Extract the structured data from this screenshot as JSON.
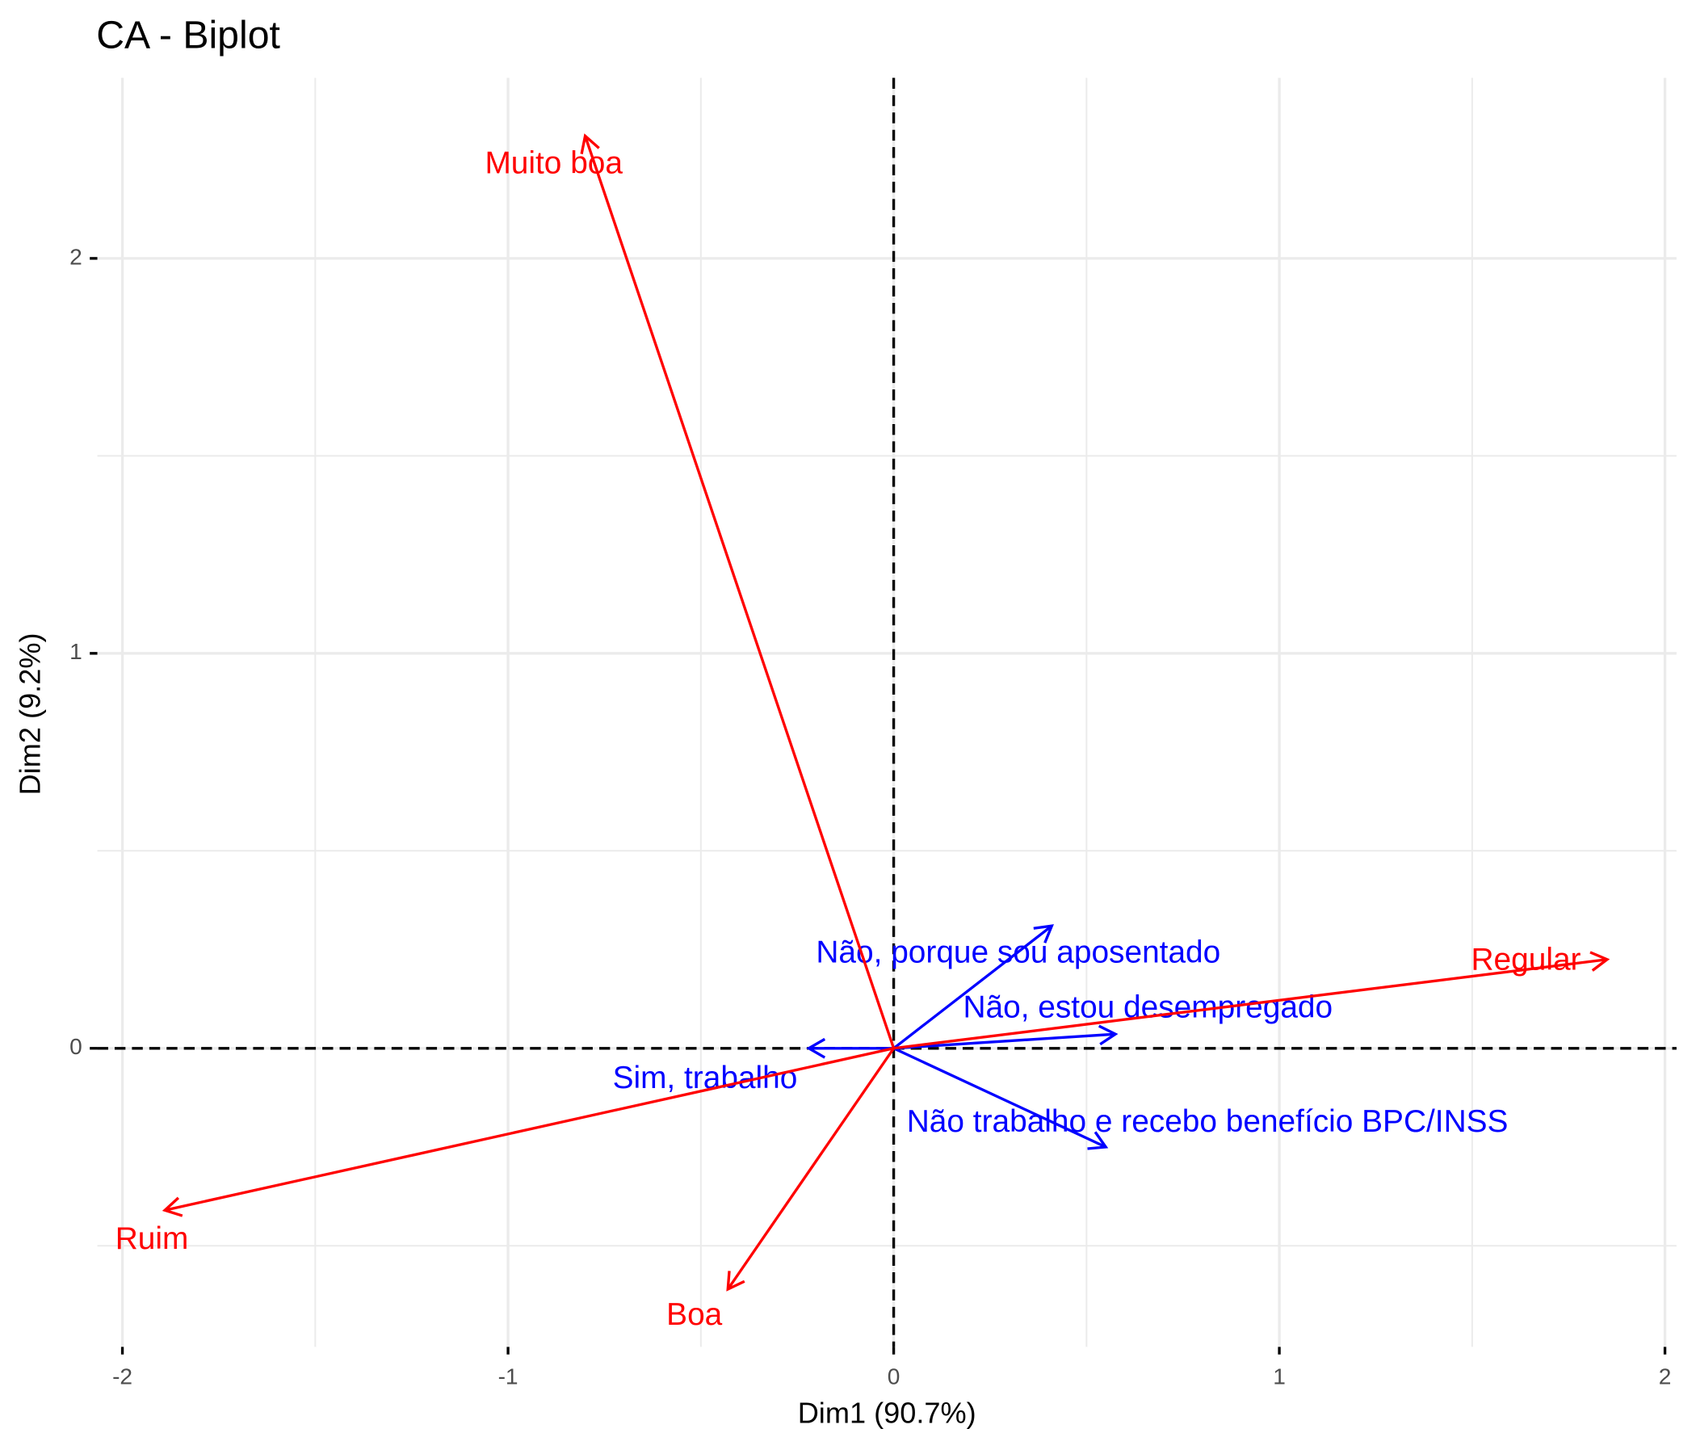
{
  "chart_data": {
    "type": "biplot",
    "title": "CA - Biplot",
    "xlabel": "Dim1 (90.7%)",
    "ylabel": "Dim2 (9.2%)",
    "xlim": [
      -2.065,
      2.03
    ],
    "ylim": [
      -0.756,
      2.457
    ],
    "xticks": [
      -2,
      -1,
      0,
      1,
      2
    ],
    "yticks": [
      0,
      1,
      2
    ],
    "grid": true,
    "groups": [
      {
        "color": "#0000ff",
        "labels": [
          "Não, porque sou aposentado",
          "Não, estou desempregado",
          "Sim, trabalho",
          "Não trabalho e recebo benefício BPC/INSS"
        ],
        "x": [
          0.41,
          0.575,
          -0.22,
          0.55
        ],
        "y": [
          0.31,
          0.036,
          0.0,
          -0.25
        ]
      },
      {
        "color": "#ff0000",
        "labels": [
          "Muito boa",
          "Regular",
          "Ruim",
          "Boa"
        ],
        "x": [
          -0.8,
          1.85,
          -1.89,
          -0.43
        ],
        "y": [
          2.31,
          0.225,
          -0.41,
          -0.61
        ]
      }
    ]
  }
}
